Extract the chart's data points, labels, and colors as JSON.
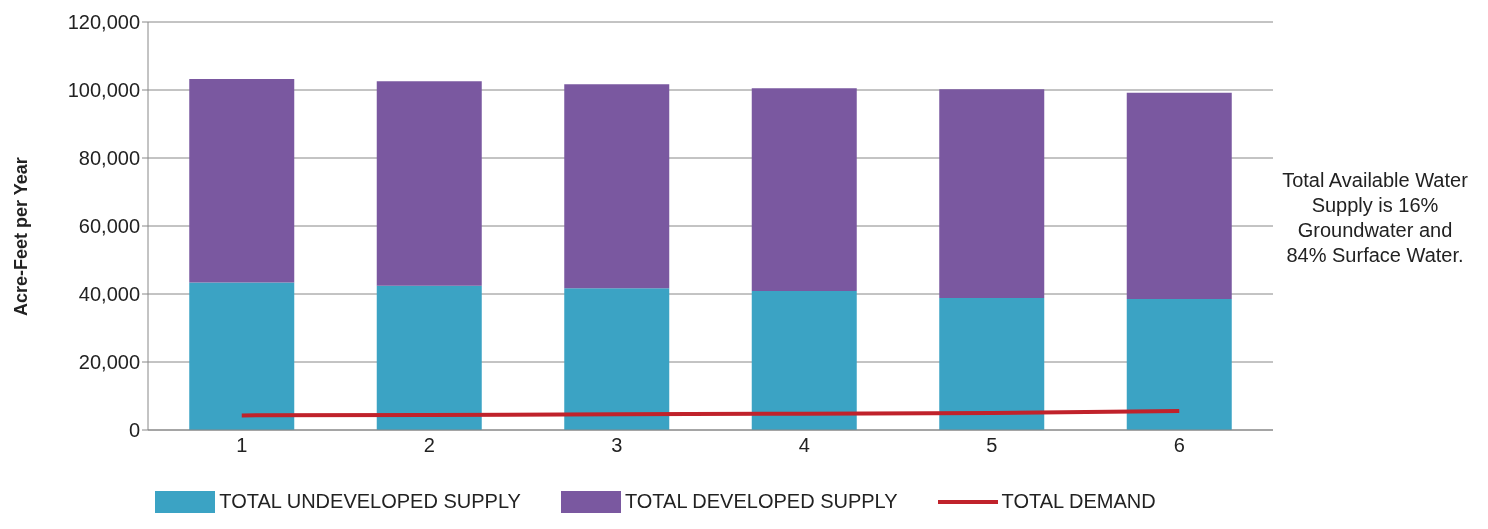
{
  "chart_data": {
    "type": "bar",
    "ylabel": "Acre-Feet per Year",
    "categories": [
      "1",
      "2",
      "3",
      "4",
      "5",
      "6"
    ],
    "stacked": true,
    "series": [
      {
        "name": "TOTAL UNDEVELOPED SUPPLY",
        "color": "#3ba3c4",
        "values": [
          43400,
          42400,
          41700,
          40900,
          38800,
          38500
        ]
      },
      {
        "name": "TOTAL DEVELOPED SUPPLY",
        "color": "#7a58a0",
        "values": [
          59800,
          60200,
          60000,
          59600,
          61400,
          60700
        ]
      },
      {
        "name": "TOTAL DEMAND",
        "type": "line",
        "color": "#c0222b",
        "values": [
          4300,
          4400,
          4600,
          4800,
          5000,
          5600
        ]
      }
    ],
    "ylim": [
      0,
      120000
    ],
    "yticks": [
      {
        "value": 0,
        "label": "0"
      },
      {
        "value": 20000,
        "label": "20,000"
      },
      {
        "value": 40000,
        "label": "40,000"
      },
      {
        "value": 60000,
        "label": "60,000"
      },
      {
        "value": 80000,
        "label": "80,000"
      },
      {
        "value": 100000,
        "label": "100,000"
      },
      {
        "value": 120000,
        "label": "120,000"
      }
    ],
    "grid": "y",
    "legend": "bottom",
    "marker": "none",
    "annotations": [
      "Total Available Water Supply is 16% Groundwater and 84% Surface Water."
    ]
  }
}
